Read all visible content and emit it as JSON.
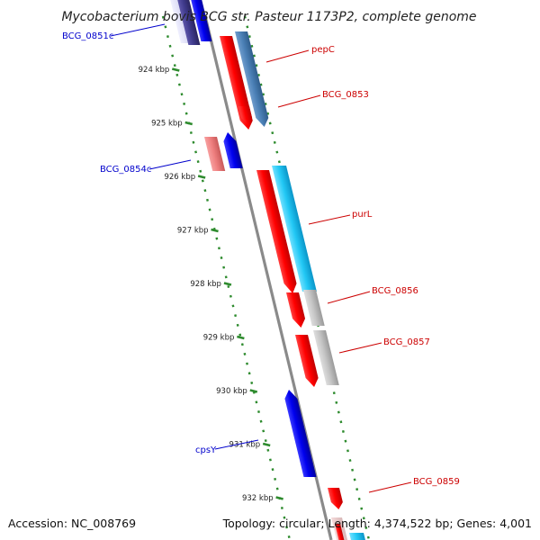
{
  "title": "Mycobacterium bovis BCG str. Pasteur 1173P2, complete genome",
  "footer": {
    "accession": "Accession: NC_008769",
    "summary": "Topology: circular; Length: 4,374,522 bp; Genes: 4,001"
  },
  "colors": {
    "backbone": "#8a8a8a",
    "ticks": "#2e8b2e",
    "forward_label": "#cc0000",
    "reverse_label": "#0000cc",
    "leader": "#333333"
  },
  "ticks": [
    {
      "label": "924 kbp",
      "pos": 924
    },
    {
      "label": "925 kbp",
      "pos": 925
    },
    {
      "label": "926 kbp",
      "pos": 926
    },
    {
      "label": "927 kbp",
      "pos": 927
    },
    {
      "label": "928 kbp",
      "pos": 928
    },
    {
      "label": "929 kbp",
      "pos": 929
    },
    {
      "label": "930 kbp",
      "pos": 930
    },
    {
      "label": "931 kbp",
      "pos": 931
    },
    {
      "label": "932 kbp",
      "pos": 932
    }
  ],
  "gene_labels": [
    {
      "text": "BCG_0851c",
      "strand": "reverse"
    },
    {
      "text": "pepC",
      "strand": "forward"
    },
    {
      "text": "BCG_0853",
      "strand": "forward"
    },
    {
      "text": "BCG_0854c",
      "strand": "reverse"
    },
    {
      "text": "purL",
      "strand": "forward"
    },
    {
      "text": "BCG_0856",
      "strand": "forward"
    },
    {
      "text": "BCG_0857",
      "strand": "forward"
    },
    {
      "text": "cpsY",
      "strand": "reverse"
    },
    {
      "text": "BCG_0859",
      "strand": "forward"
    }
  ]
}
